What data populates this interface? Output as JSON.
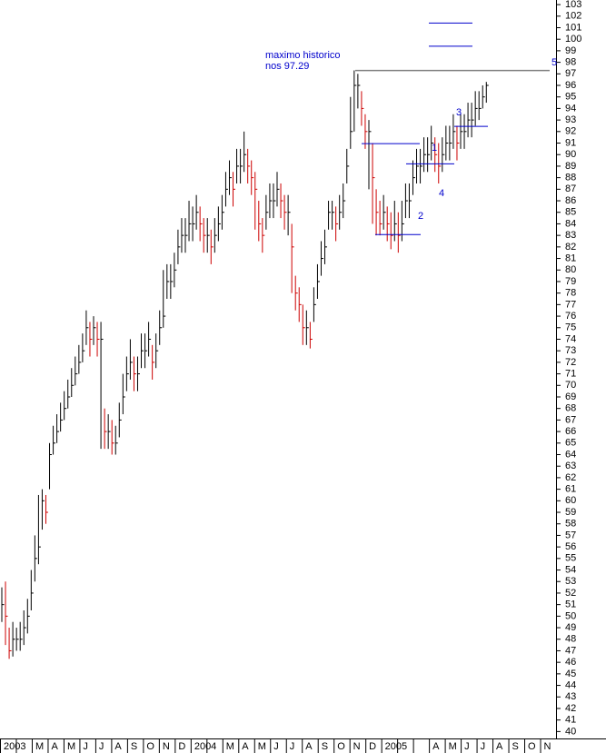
{
  "chart_data": {
    "type": "ohlc",
    "categories": [
      "2003",
      null,
      "M",
      "A",
      "M",
      "J",
      "J",
      "A",
      "S",
      "O",
      "N",
      "D",
      "2004",
      null,
      "M",
      "A",
      "M",
      "J",
      "J",
      "A",
      "S",
      "O",
      "N",
      "D",
      "2005",
      null,
      null,
      "A",
      "M",
      "J",
      "J",
      "A",
      "S",
      "O",
      "N"
    ],
    "high": [
      52.5,
      53,
      49,
      49.5,
      49,
      49.5,
      50.5,
      51.5,
      54,
      57,
      60.5,
      61,
      60.5,
      65,
      66.5,
      67.5,
      68.5,
      69.5,
      70.5,
      71.5,
      72.5,
      73.5,
      74.5,
      76.5,
      75.5,
      76,
      75.5,
      75.5,
      68,
      67.5,
      67,
      66.5,
      68.5,
      71,
      72.5,
      74,
      72.5,
      72.5,
      74.5,
      74.5,
      75.5,
      73.5,
      74.5,
      76.5,
      80,
      80.5,
      80.5,
      81.5,
      83.5,
      84.5,
      84.5,
      86,
      85.5,
      86.5,
      85.5,
      84.5,
      84.5,
      83.5,
      84.5,
      85.5,
      86.5,
      88.5,
      89.5,
      88.5,
      90.5,
      90.5,
      92,
      90.5,
      89.5,
      88.5,
      86,
      84.5,
      86.5,
      87.5,
      87.5,
      88.5,
      87.5,
      86.5,
      86.5,
      84,
      79.5,
      78.5,
      77,
      76.5,
      75.5,
      78.5,
      80.5,
      82.5,
      83.5,
      86,
      86,
      85.5,
      86.5,
      87.5,
      90.5,
      95,
      97.3,
      97,
      95.5,
      93.5,
      93,
      91,
      87,
      86,
      86.5,
      85.5,
      85,
      86,
      85,
      86,
      87.5,
      87.5,
      89.5,
      90.5,
      90.5,
      91.5,
      91.5,
      92.5,
      91.5,
      91,
      91.5,
      92.5,
      92.5,
      93.5,
      92.5,
      93.5,
      93.5,
      94.5,
      94.5,
      95.5,
      95.5,
      96,
      96.3
    ],
    "low": [
      49.5,
      47.5,
      46.3,
      46.5,
      47,
      47,
      47.5,
      48.5,
      50.5,
      53,
      54.5,
      57.5,
      58,
      61,
      64,
      65,
      66,
      67,
      68,
      69,
      70,
      71,
      72,
      73.5,
      72.5,
      73.5,
      72.5,
      64.5,
      64.5,
      64.5,
      64,
      64,
      65.5,
      67.5,
      69.5,
      70.5,
      69.5,
      69.5,
      71.5,
      71.5,
      72.5,
      70.5,
      71.5,
      73.5,
      75,
      77.5,
      77.5,
      78.5,
      80.5,
      81.5,
      81.5,
      82.5,
      82.5,
      83.5,
      82.5,
      81.5,
      81.5,
      80.5,
      81.5,
      82.5,
      83.5,
      85.5,
      86.5,
      85.5,
      87.5,
      87.5,
      88.5,
      87.5,
      86.5,
      83.5,
      82.5,
      81.5,
      83.5,
      84.5,
      84.5,
      85.5,
      84.5,
      83.5,
      83,
      78,
      76.5,
      75.5,
      73.5,
      73.5,
      73.2,
      75.5,
      77.5,
      79.5,
      80.5,
      83.5,
      83.5,
      82.5,
      83.5,
      84.5,
      87.5,
      90.5,
      92,
      94,
      92.5,
      90.5,
      87,
      84,
      83,
      83,
      83.5,
      82.5,
      81.8,
      82.5,
      81.5,
      82.5,
      84.5,
      84.5,
      86.5,
      87.5,
      87.5,
      88.5,
      88.5,
      89.5,
      88.5,
      87.5,
      88.5,
      89.5,
      89.5,
      90.5,
      89.5,
      90.5,
      90.5,
      91.5,
      91.5,
      92.5,
      93,
      94,
      94.5
    ],
    "close": [
      51,
      50,
      47,
      48,
      48,
      48,
      49,
      50,
      52,
      55,
      56,
      60,
      59,
      64,
      65,
      66,
      67,
      68,
      69,
      70,
      71,
      72,
      73,
      75,
      74,
      75,
      74,
      74,
      66,
      66,
      65,
      65,
      67,
      69,
      71,
      72,
      71,
      71,
      73,
      73,
      74,
      72,
      73,
      75,
      76,
      79,
      79,
      80,
      82,
      83,
      83,
      84,
      84,
      85,
      84,
      83,
      83,
      82,
      83,
      84,
      85,
      87,
      88,
      87,
      89,
      89,
      90,
      89,
      88,
      87,
      84,
      83,
      85,
      86,
      86,
      87,
      86,
      85,
      85,
      82,
      78,
      77,
      75,
      75,
      74,
      77,
      79,
      81,
      82,
      85,
      85,
      84,
      85,
      86,
      89,
      92,
      96,
      96,
      94,
      92,
      92,
      88,
      85,
      84,
      85,
      84,
      83,
      84,
      83,
      84,
      86,
      86,
      88,
      89,
      89,
      90,
      90,
      91,
      90,
      89,
      90,
      91,
      91,
      92,
      91,
      92,
      92,
      93,
      93,
      94,
      94,
      95,
      96
    ],
    "up_color": "#000000",
    "down_color": "#cc0000",
    "ylim": [
      39.4,
      103.4
    ],
    "yticks": [
      40,
      41,
      42,
      43,
      44,
      45,
      46,
      47,
      48,
      49,
      50,
      51,
      52,
      53,
      54,
      55,
      56,
      57,
      58,
      59,
      60,
      61,
      62,
      63,
      64,
      65,
      66,
      67,
      68,
      69,
      70,
      71,
      72,
      73,
      74,
      75,
      76,
      77,
      78,
      79,
      80,
      81,
      82,
      83,
      84,
      85,
      86,
      87,
      88,
      89,
      90,
      91,
      92,
      93,
      94,
      95,
      96,
      97,
      98,
      99,
      100,
      101,
      102,
      103
    ],
    "annotations": [
      "maximo historico",
      "nos 97.29",
      "1",
      "2",
      "3",
      "4",
      "5"
    ],
    "annotation_color": "#0000cc",
    "levels": [
      {
        "value": 97.29,
        "color": "#808080"
      },
      {
        "value": 101.4,
        "color": "#0000cc"
      },
      {
        "value": 99.4,
        "color": "#0000cc"
      },
      {
        "value": 90.95,
        "color": "#0000cc"
      },
      {
        "value": 83.07,
        "color": "#0000cc"
      },
      {
        "value": 89.2,
        "color": "#0000cc"
      },
      {
        "value": 92.45,
        "color": "#0000cc"
      }
    ]
  }
}
